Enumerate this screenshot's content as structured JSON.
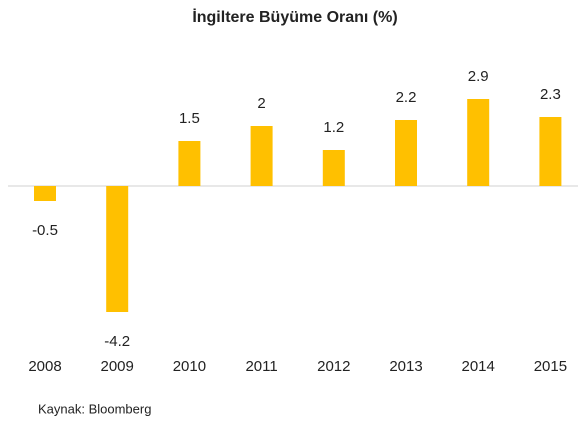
{
  "chart_data": {
    "type": "bar",
    "title": "İngiltere Büyüme Oranı (%)",
    "categories": [
      "2008",
      "2009",
      "2010",
      "2011",
      "2012",
      "2013",
      "2014",
      "2015"
    ],
    "values": [
      -0.5,
      -4.2,
      1.5,
      2,
      1.2,
      2.2,
      2.9,
      2.3
    ],
    "color": "#ffc000",
    "source": "Kaynak: Bloomberg"
  }
}
